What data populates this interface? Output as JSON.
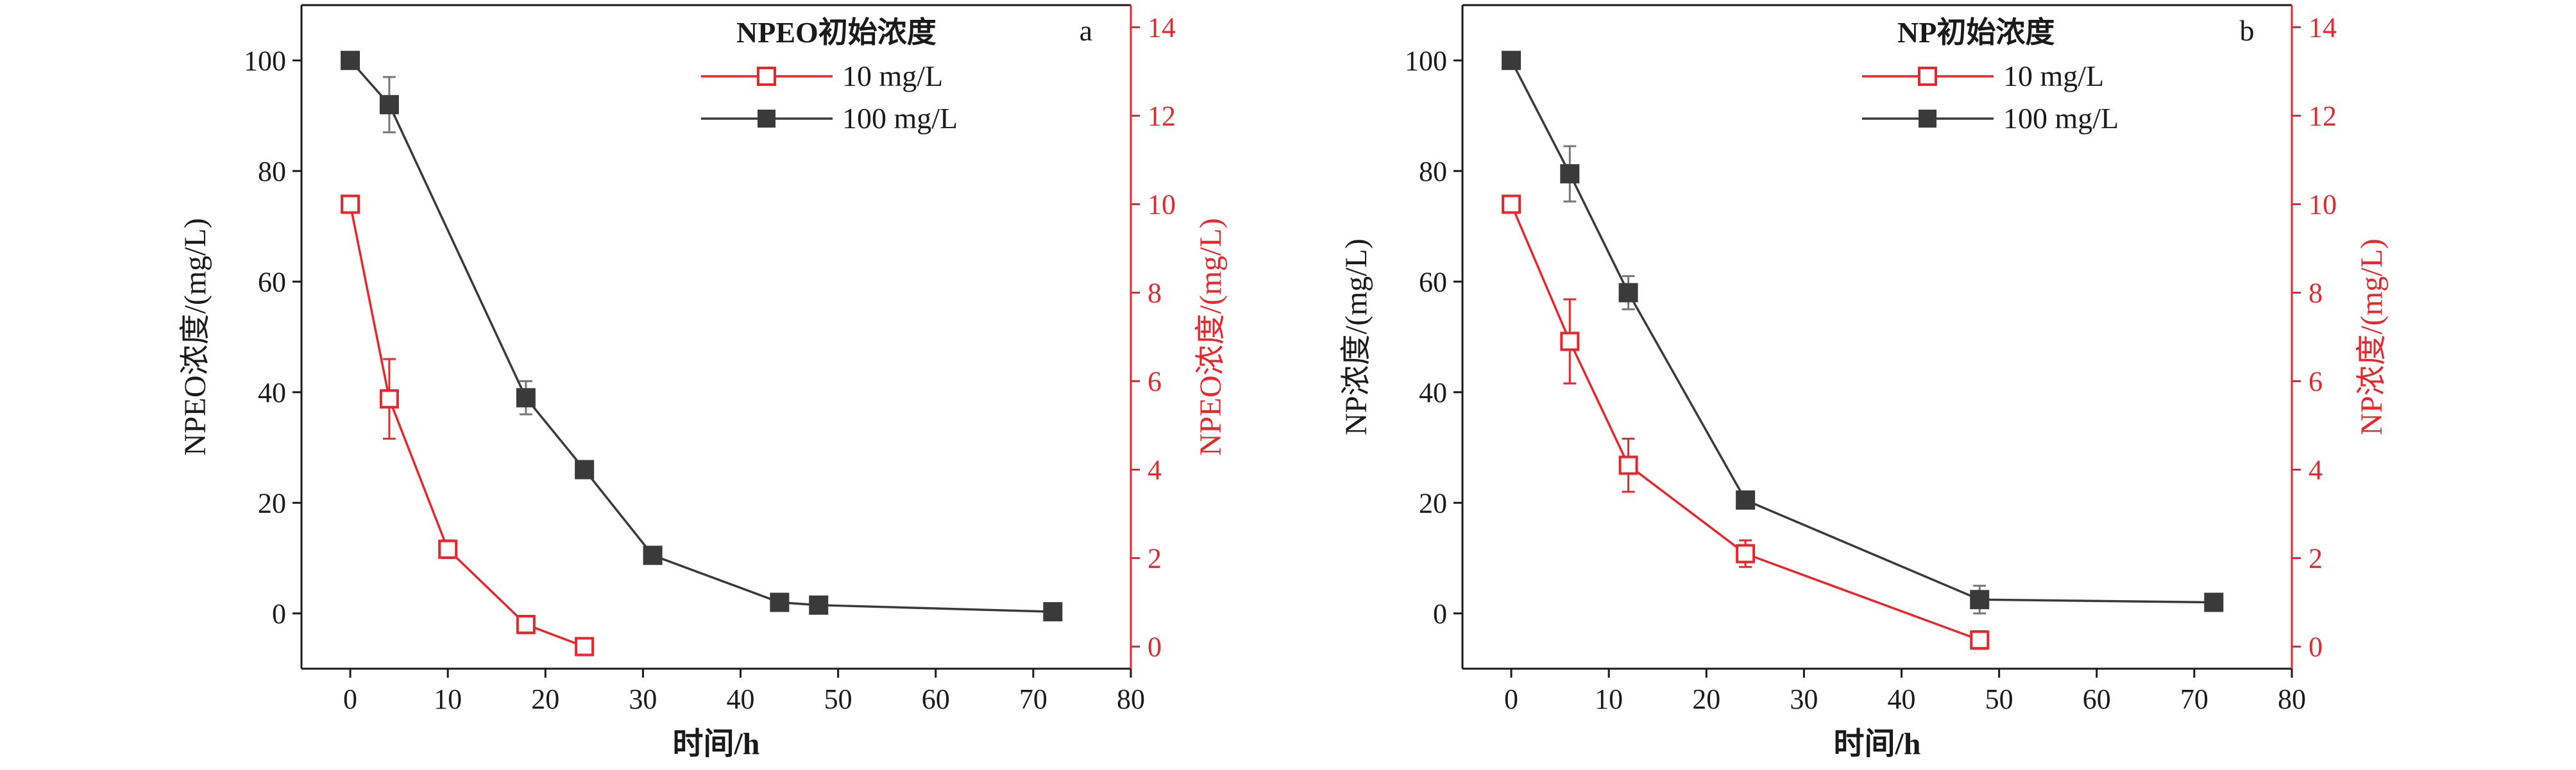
{
  "chart_data": [
    {
      "type": "line",
      "panel_label": "a",
      "xlabel": "时间/h",
      "ylabel_left": "NPEO浓度/(mg/L)",
      "ylabel_right": "NPEO浓度/(mg/L)",
      "xlim": [
        -5,
        80
      ],
      "xticks": [
        0,
        10,
        20,
        30,
        40,
        50,
        60,
        70,
        80
      ],
      "ylim_left": [
        -10,
        110
      ],
      "yticks_left": [
        0,
        20,
        40,
        60,
        80,
        100
      ],
      "ylim_right": [
        -0.5,
        14.5
      ],
      "yticks_right": [
        0,
        2,
        4,
        6,
        8,
        10,
        12,
        14
      ],
      "legend": {
        "title": "NPEO初始浓度",
        "placement": "top-right"
      },
      "series": [
        {
          "name": "10 mg/L",
          "axis": "right",
          "color": "#e8262b",
          "marker": "open-square",
          "x": [
            0,
            4,
            10,
            18,
            24
          ],
          "y": [
            10.0,
            5.6,
            2.2,
            0.5,
            0.0
          ],
          "err": [
            0,
            0.9,
            0.2,
            0.1,
            0
          ]
        },
        {
          "name": "100 mg/L",
          "axis": "left",
          "color": "#3a3a3a",
          "marker": "filled-square",
          "x": [
            0,
            4,
            18,
            24,
            31,
            44,
            48,
            72
          ],
          "y": [
            100,
            92,
            39,
            26,
            10.5,
            2,
            1.5,
            0.3
          ],
          "err": [
            0,
            5,
            3,
            0,
            0,
            0,
            0,
            0
          ]
        }
      ]
    },
    {
      "type": "line",
      "panel_label": "b",
      "xlabel": "时间/h",
      "ylabel_left": "NP浓度/(mg/L)",
      "ylabel_right": "NP浓度/(mg/L)",
      "xlim": [
        -5,
        80
      ],
      "xticks": [
        0,
        10,
        20,
        30,
        40,
        50,
        60,
        70,
        80
      ],
      "ylim_left": [
        -10,
        110
      ],
      "yticks_left": [
        0,
        20,
        40,
        60,
        80,
        100
      ],
      "ylim_right": [
        -0.5,
        14.5
      ],
      "yticks_right": [
        0,
        2,
        4,
        6,
        8,
        10,
        12,
        14
      ],
      "legend": {
        "title": "NP初始浓度",
        "placement": "top-right"
      },
      "series": [
        {
          "name": "10 mg/L",
          "axis": "right",
          "color": "#e8262b",
          "marker": "open-square",
          "x": [
            0,
            6,
            12,
            24,
            48
          ],
          "y": [
            10.0,
            6.9,
            4.1,
            2.1,
            0.15
          ],
          "err": [
            0,
            0.95,
            0.6,
            0.3,
            0.2
          ]
        },
        {
          "name": "100 mg/L",
          "axis": "left",
          "color": "#3a3a3a",
          "marker": "filled-square",
          "x": [
            0,
            6,
            12,
            24,
            48,
            72
          ],
          "y": [
            100,
            79.5,
            58,
            20.5,
            2.5,
            2
          ],
          "err": [
            0,
            5,
            3,
            1.5,
            2.5,
            0
          ]
        }
      ]
    }
  ]
}
